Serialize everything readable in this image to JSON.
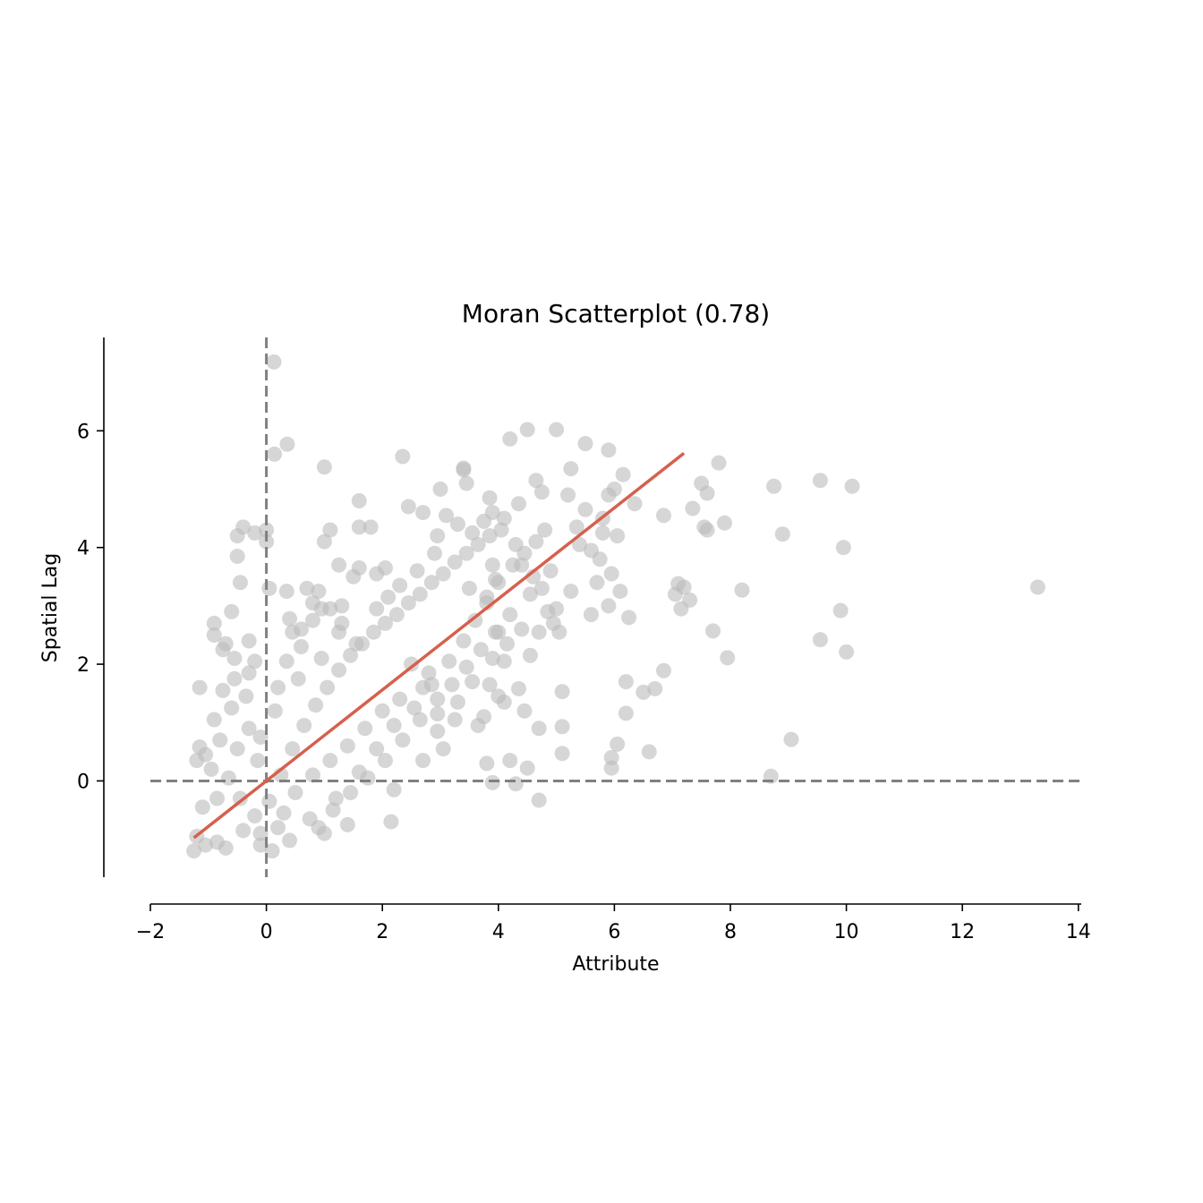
{
  "chart_data": {
    "type": "scatter",
    "title": "Moran Scatterplot (0.78)",
    "xlabel": "Attribute",
    "ylabel": "Spatial Lag",
    "xlim": [
      -2,
      14.05
    ],
    "ylim": [
      -1.65,
      7.6
    ],
    "xticks": [
      -2,
      0,
      2,
      4,
      6,
      8,
      10,
      12,
      14
    ],
    "xtick_labels": [
      "−2",
      "0",
      "2",
      "4",
      "6",
      "8",
      "10",
      "12",
      "14"
    ],
    "yticks": [
      0,
      2,
      4,
      6
    ],
    "ytick_labels": [
      "0",
      "2",
      "4",
      "6"
    ],
    "grid": false,
    "point_color": "#bababa",
    "line_color": "#d6604d",
    "reference_color": "#808080",
    "reference_lines": {
      "x": 0,
      "y": 0
    },
    "fit_line": {
      "slope": 0.78,
      "x_start": -1.25,
      "x_end": 7.2
    },
    "points": [
      [
        0.13,
        7.18
      ],
      [
        0.36,
        5.77
      ],
      [
        0.14,
        5.6
      ],
      [
        1.0,
        5.38
      ],
      [
        4.5,
        6.02
      ],
      [
        5.0,
        6.02
      ],
      [
        4.2,
        5.86
      ],
      [
        5.5,
        5.78
      ],
      [
        5.9,
        5.67
      ],
      [
        3.4,
        5.36
      ],
      [
        3.4,
        5.33
      ],
      [
        2.35,
        5.56
      ],
      [
        7.8,
        5.45
      ],
      [
        8.75,
        5.05
      ],
      [
        9.55,
        5.15
      ],
      [
        10.1,
        5.05
      ],
      [
        7.5,
        5.1
      ],
      [
        7.6,
        4.93
      ],
      [
        8.9,
        4.23
      ],
      [
        9.95,
        4.0
      ],
      [
        6.35,
        4.75
      ],
      [
        6.85,
        4.55
      ],
      [
        7.35,
        4.67
      ],
      [
        7.55,
        4.35
      ],
      [
        7.6,
        4.3
      ],
      [
        7.9,
        4.42
      ],
      [
        13.3,
        3.32
      ],
      [
        8.2,
        3.27
      ],
      [
        7.1,
        3.38
      ],
      [
        7.2,
        3.32
      ],
      [
        7.3,
        3.1
      ],
      [
        7.05,
        3.2
      ],
      [
        7.15,
        2.95
      ],
      [
        9.9,
        2.92
      ],
      [
        9.55,
        2.42
      ],
      [
        7.7,
        2.57
      ],
      [
        10.0,
        2.21
      ],
      [
        7.95,
        2.11
      ],
      [
        6.85,
        1.89
      ],
      [
        6.7,
        1.58
      ],
      [
        6.5,
        1.52
      ],
      [
        6.2,
        1.7
      ],
      [
        6.2,
        1.16
      ],
      [
        6.6,
        0.5
      ],
      [
        6.05,
        0.63
      ],
      [
        9.05,
        0.71
      ],
      [
        8.7,
        0.08
      ],
      [
        5.95,
        0.22
      ],
      [
        5.95,
        0.4
      ],
      [
        5.1,
        0.47
      ],
      [
        5.1,
        0.93
      ],
      [
        5.1,
        1.53
      ],
      [
        4.7,
        0.9
      ],
      [
        4.5,
        0.22
      ],
      [
        4.7,
        -0.33
      ],
      [
        4.3,
        -0.05
      ],
      [
        3.9,
        -0.03
      ],
      [
        4.2,
        0.35
      ],
      [
        3.8,
        0.3
      ],
      [
        2.2,
        -0.15
      ],
      [
        2.15,
        -0.7
      ],
      [
        1.4,
        -0.75
      ],
      [
        1.0,
        -0.9
      ],
      [
        0.4,
        -1.02
      ],
      [
        0.1,
        -1.2
      ],
      [
        -0.1,
        -1.1
      ],
      [
        -1.15,
        1.6
      ],
      [
        -0.9,
        2.5
      ],
      [
        -0.9,
        2.7
      ],
      [
        -0.6,
        2.9
      ],
      [
        -0.45,
        3.4
      ],
      [
        -0.5,
        3.85
      ],
      [
        -0.4,
        4.35
      ],
      [
        -0.2,
        4.25
      ],
      [
        0.0,
        4.3
      ],
      [
        -0.5,
        4.2
      ],
      [
        0.0,
        4.1
      ],
      [
        0.35,
        3.25
      ],
      [
        0.05,
        3.3
      ],
      [
        0.4,
        2.78
      ],
      [
        -0.3,
        2.4
      ],
      [
        0.6,
        2.6
      ],
      [
        0.45,
        2.55
      ],
      [
        -0.7,
        2.35
      ],
      [
        -0.2,
        2.05
      ],
      [
        0.7,
        3.3
      ],
      [
        0.8,
        3.05
      ],
      [
        1.1,
        4.3
      ],
      [
        1.0,
        4.1
      ],
      [
        1.6,
        4.8
      ],
      [
        1.6,
        4.35
      ],
      [
        1.8,
        4.35
      ],
      [
        2.45,
        4.7
      ],
      [
        2.7,
        4.6
      ],
      [
        2.95,
        4.2
      ],
      [
        3.0,
        5.0
      ],
      [
        3.45,
        5.1
      ],
      [
        3.85,
        4.85
      ],
      [
        3.9,
        4.6
      ],
      [
        4.1,
        4.5
      ],
      [
        4.35,
        4.75
      ],
      [
        4.75,
        4.95
      ],
      [
        4.65,
        5.15
      ],
      [
        5.25,
        5.35
      ],
      [
        5.2,
        4.9
      ],
      [
        5.5,
        4.65
      ],
      [
        5.35,
        4.35
      ],
      [
        5.8,
        4.5
      ],
      [
        5.9,
        4.9
      ],
      [
        6.0,
        5.0
      ],
      [
        6.15,
        5.25
      ],
      [
        5.8,
        4.25
      ],
      [
        6.05,
        4.2
      ],
      [
        5.4,
        4.05
      ],
      [
        5.6,
        3.95
      ],
      [
        5.75,
        3.8
      ],
      [
        5.95,
        3.55
      ],
      [
        5.7,
        3.4
      ],
      [
        6.1,
        3.25
      ],
      [
        5.9,
        3.0
      ],
      [
        6.25,
        2.8
      ],
      [
        5.6,
        2.85
      ],
      [
        5.25,
        3.25
      ],
      [
        5.0,
        2.95
      ],
      [
        4.95,
        2.7
      ],
      [
        5.05,
        2.55
      ],
      [
        4.7,
        2.55
      ],
      [
        4.9,
        3.6
      ],
      [
        4.6,
        3.5
      ],
      [
        4.8,
        4.3
      ],
      [
        4.4,
        3.7
      ],
      [
        4.55,
        2.15
      ],
      [
        4.0,
        1.45
      ],
      [
        4.1,
        1.35
      ],
      [
        4.45,
        1.2
      ],
      [
        4.35,
        1.58
      ],
      [
        4.1,
        2.05
      ],
      [
        3.85,
        1.65
      ],
      [
        3.65,
        0.95
      ],
      [
        3.75,
        1.1
      ],
      [
        3.95,
        2.55
      ],
      [
        3.8,
        3.05
      ],
      [
        3.95,
        3.45
      ],
      [
        3.55,
        1.7
      ],
      [
        3.3,
        1.35
      ],
      [
        3.25,
        1.05
      ],
      [
        2.95,
        0.85
      ],
      [
        3.05,
        0.55
      ],
      [
        2.7,
        0.35
      ],
      [
        2.95,
        1.15
      ],
      [
        2.8,
        1.85
      ],
      [
        1.6,
        3.65
      ],
      [
        1.9,
        3.55
      ],
      [
        1.5,
        3.5
      ],
      [
        1.25,
        3.7
      ],
      [
        2.05,
        3.65
      ],
      [
        1.3,
        3.0
      ],
      [
        0.9,
        3.25
      ],
      [
        0.95,
        2.95
      ],
      [
        0.8,
        2.75
      ],
      [
        1.25,
        2.55
      ],
      [
        1.55,
        2.35
      ],
      [
        -0.95,
        0.2
      ],
      [
        -1.05,
        0.45
      ],
      [
        -1.15,
        0.58
      ],
      [
        -1.2,
        0.35
      ],
      [
        -1.1,
        -0.45
      ],
      [
        -1.2,
        -0.95
      ],
      [
        -1.25,
        -1.2
      ],
      [
        -1.05,
        -1.1
      ],
      [
        -0.85,
        -1.05
      ],
      [
        -0.7,
        -1.15
      ],
      [
        -0.9,
        1.05
      ],
      [
        -0.75,
        1.55
      ],
      [
        -0.55,
        1.75
      ],
      [
        -0.35,
        1.45
      ],
      [
        -0.6,
        1.25
      ],
      [
        -0.8,
        0.7
      ],
      [
        -0.5,
        0.55
      ],
      [
        -0.3,
        0.9
      ],
      [
        -0.15,
        0.35
      ],
      [
        -0.45,
        -0.3
      ],
      [
        -0.2,
        -0.6
      ],
      [
        0.05,
        -0.35
      ],
      [
        0.25,
        0.1
      ],
      [
        0.45,
        0.55
      ],
      [
        0.65,
        0.95
      ],
      [
        0.85,
        1.3
      ],
      [
        1.05,
        1.6
      ],
      [
        1.25,
        1.9
      ],
      [
        1.45,
        2.15
      ],
      [
        1.65,
        2.35
      ],
      [
        1.85,
        2.55
      ],
      [
        2.05,
        2.7
      ],
      [
        2.25,
        2.85
      ],
      [
        2.45,
        3.05
      ],
      [
        2.65,
        3.2
      ],
      [
        2.85,
        3.4
      ],
      [
        3.05,
        3.55
      ],
      [
        3.25,
        3.75
      ],
      [
        3.45,
        3.9
      ],
      [
        3.65,
        4.05
      ],
      [
        3.85,
        4.2
      ],
      [
        4.05,
        4.3
      ],
      [
        2.5,
        2.0
      ],
      [
        2.7,
        1.6
      ],
      [
        2.3,
        1.4
      ],
      [
        2.0,
        1.2
      ],
      [
        1.7,
        0.9
      ],
      [
        1.4,
        0.6
      ],
      [
        1.1,
        0.35
      ],
      [
        0.8,
        0.1
      ],
      [
        0.5,
        -0.2
      ],
      [
        0.3,
        -0.55
      ],
      [
        0.75,
        -0.65
      ],
      [
        1.2,
        -0.3
      ],
      [
        1.6,
        0.15
      ],
      [
        1.9,
        0.55
      ],
      [
        2.2,
        0.95
      ],
      [
        2.55,
        1.25
      ],
      [
        2.85,
        1.65
      ],
      [
        3.15,
        2.05
      ],
      [
        3.4,
        2.4
      ],
      [
        3.6,
        2.75
      ],
      [
        3.8,
        3.15
      ],
      [
        4.0,
        3.4
      ],
      [
        4.25,
        3.7
      ],
      [
        4.45,
        3.9
      ],
      [
        4.65,
        4.1
      ],
      [
        4.2,
        2.85
      ],
      [
        4.0,
        2.55
      ],
      [
        3.7,
        2.25
      ],
      [
        3.45,
        1.95
      ],
      [
        3.2,
        1.65
      ],
      [
        2.95,
        1.4
      ],
      [
        2.65,
        1.05
      ],
      [
        2.35,
        0.7
      ],
      [
        2.05,
        0.35
      ],
      [
        1.75,
        0.05
      ],
      [
        1.45,
        -0.2
      ],
      [
        1.15,
        -0.5
      ],
      [
        0.9,
        -0.8
      ],
      [
        0.2,
        1.6
      ],
      [
        0.35,
        2.05
      ],
      [
        0.6,
        2.3
      ],
      [
        0.95,
        2.1
      ],
      [
        1.3,
        2.7
      ],
      [
        1.1,
        2.95
      ],
      [
        0.55,
        1.75
      ],
      [
        0.15,
        1.2
      ],
      [
        -0.1,
        0.75
      ],
      [
        -0.3,
        1.85
      ],
      [
        -0.55,
        2.1
      ],
      [
        -0.75,
        2.25
      ],
      [
        -0.65,
        0.05
      ],
      [
        -0.85,
        -0.3
      ],
      [
        -0.4,
        -0.85
      ],
      [
        -0.1,
        -0.9
      ],
      [
        0.2,
        -0.8
      ],
      [
        3.1,
        4.55
      ],
      [
        3.3,
        4.4
      ],
      [
        3.55,
        4.25
      ],
      [
        3.75,
        4.45
      ],
      [
        2.9,
        3.9
      ],
      [
        2.6,
        3.6
      ],
      [
        2.3,
        3.35
      ],
      [
        2.1,
        3.15
      ],
      [
        1.9,
        2.95
      ],
      [
        3.5,
        3.3
      ],
      [
        3.9,
        3.7
      ],
      [
        4.3,
        4.05
      ],
      [
        4.55,
        3.2
      ],
      [
        4.75,
        3.3
      ],
      [
        4.85,
        2.9
      ],
      [
        4.4,
        2.6
      ],
      [
        4.15,
        2.35
      ],
      [
        3.9,
        2.1
      ]
    ]
  }
}
